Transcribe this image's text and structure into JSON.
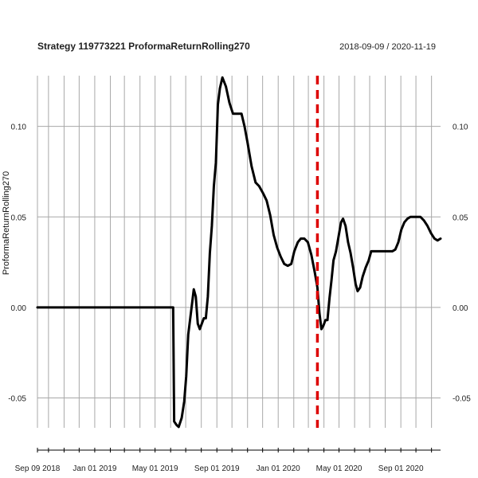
{
  "chart_data": {
    "type": "line",
    "title": "Strategy 119773221 ProformaReturnRolling270",
    "date_range": "2018-09-09 / 2020-11-19",
    "ylabel": "ProformaReturnRolling270",
    "xlabel": "",
    "xlim": [
      "2018-09-09",
      "2020-11-19"
    ],
    "ylim": [
      -0.0665,
      0.128
    ],
    "grid": true,
    "y_ticks": [
      {
        "value": -0.05,
        "label": "-0.05"
      },
      {
        "value": 0.0,
        "label": "0.00"
      },
      {
        "value": 0.05,
        "label": "0.05"
      },
      {
        "value": 0.1,
        "label": "0.10"
      }
    ],
    "x_ticks": [
      {
        "date": "2018-09-09",
        "label": "Sep 09 2018"
      },
      {
        "date": "2019-01-01",
        "label": "Jan 01 2019"
      },
      {
        "date": "2019-05-01",
        "label": "May 01 2019"
      },
      {
        "date": "2019-09-01",
        "label": "Sep 01 2019"
      },
      {
        "date": "2020-01-01",
        "label": "Jan 01 2020"
      },
      {
        "date": "2020-05-01",
        "label": "May 01 2020"
      },
      {
        "date": "2020-09-01",
        "label": "Sep 01 2020"
      }
    ],
    "vertical_marker": {
      "date": "2020-03-19",
      "color": "#dd0000",
      "style": "dashed"
    },
    "series": [
      {
        "color": "#000000",
        "points": [
          [
            "2018-09-09",
            0.0
          ],
          [
            "2019-06-06",
            0.0
          ],
          [
            "2019-06-08",
            -0.063
          ],
          [
            "2019-06-13",
            -0.065
          ],
          [
            "2019-06-17",
            -0.066
          ],
          [
            "2019-06-23",
            -0.061
          ],
          [
            "2019-06-28",
            -0.052
          ],
          [
            "2019-07-02",
            -0.038
          ],
          [
            "2019-07-06",
            -0.015
          ],
          [
            "2019-07-10",
            -0.006
          ],
          [
            "2019-07-14",
            0.003
          ],
          [
            "2019-07-17",
            0.01
          ],
          [
            "2019-07-21",
            0.006
          ],
          [
            "2019-07-25",
            -0.009
          ],
          [
            "2019-07-29",
            -0.012
          ],
          [
            "2019-08-02",
            -0.009
          ],
          [
            "2019-08-06",
            -0.006
          ],
          [
            "2019-08-10",
            -0.006
          ],
          [
            "2019-08-14",
            0.006
          ],
          [
            "2019-08-18",
            0.03
          ],
          [
            "2019-08-22",
            0.045
          ],
          [
            "2019-08-26",
            0.067
          ],
          [
            "2019-08-30",
            0.08
          ],
          [
            "2019-09-03",
            0.112
          ],
          [
            "2019-09-07",
            0.121
          ],
          [
            "2019-09-12",
            0.127
          ],
          [
            "2019-09-19",
            0.122
          ],
          [
            "2019-09-26",
            0.113
          ],
          [
            "2019-10-03",
            0.107
          ],
          [
            "2019-10-20",
            0.107
          ],
          [
            "2019-10-26",
            0.1
          ],
          [
            "2019-11-01",
            0.091
          ],
          [
            "2019-11-09",
            0.078
          ],
          [
            "2019-11-17",
            0.069
          ],
          [
            "2019-11-24",
            0.067
          ],
          [
            "2019-12-02",
            0.063
          ],
          [
            "2019-12-09",
            0.059
          ],
          [
            "2019-12-16",
            0.051
          ],
          [
            "2019-12-23",
            0.04
          ],
          [
            "2019-12-30",
            0.033
          ],
          [
            "2020-01-06",
            0.028
          ],
          [
            "2020-01-13",
            0.024
          ],
          [
            "2020-01-20",
            0.023
          ],
          [
            "2020-01-27",
            0.024
          ],
          [
            "2020-02-02",
            0.031
          ],
          [
            "2020-02-09",
            0.036
          ],
          [
            "2020-02-15",
            0.038
          ],
          [
            "2020-02-22",
            0.038
          ],
          [
            "2020-02-29",
            0.036
          ],
          [
            "2020-03-07",
            0.029
          ],
          [
            "2020-03-14",
            0.019
          ],
          [
            "2020-03-19",
            0.011
          ],
          [
            "2020-03-23",
            -0.003
          ],
          [
            "2020-03-27",
            -0.012
          ],
          [
            "2020-03-31",
            -0.01
          ],
          [
            "2020-04-04",
            -0.007
          ],
          [
            "2020-04-08",
            -0.007
          ],
          [
            "2020-04-12",
            0.005
          ],
          [
            "2020-04-16",
            0.015
          ],
          [
            "2020-04-20",
            0.026
          ],
          [
            "2020-04-25",
            0.031
          ],
          [
            "2020-04-30",
            0.039
          ],
          [
            "2020-05-05",
            0.047
          ],
          [
            "2020-05-09",
            0.049
          ],
          [
            "2020-05-14",
            0.045
          ],
          [
            "2020-05-19",
            0.036
          ],
          [
            "2020-05-24",
            0.03
          ],
          [
            "2020-05-29",
            0.022
          ],
          [
            "2020-06-03",
            0.013
          ],
          [
            "2020-06-07",
            0.009
          ],
          [
            "2020-06-12",
            0.011
          ],
          [
            "2020-06-17",
            0.017
          ],
          [
            "2020-06-23",
            0.022
          ],
          [
            "2020-06-29",
            0.026
          ],
          [
            "2020-07-04",
            0.031
          ],
          [
            "2020-08-15",
            0.031
          ],
          [
            "2020-08-21",
            0.032
          ],
          [
            "2020-08-27",
            0.036
          ],
          [
            "2020-09-02",
            0.043
          ],
          [
            "2020-09-08",
            0.047
          ],
          [
            "2020-09-14",
            0.049
          ],
          [
            "2020-09-20",
            0.05
          ],
          [
            "2020-10-10",
            0.05
          ],
          [
            "2020-10-17",
            0.048
          ],
          [
            "2020-10-24",
            0.045
          ],
          [
            "2020-10-31",
            0.041
          ],
          [
            "2020-11-07",
            0.038
          ],
          [
            "2020-11-13",
            0.037
          ],
          [
            "2020-11-19",
            0.038
          ]
        ]
      }
    ]
  }
}
